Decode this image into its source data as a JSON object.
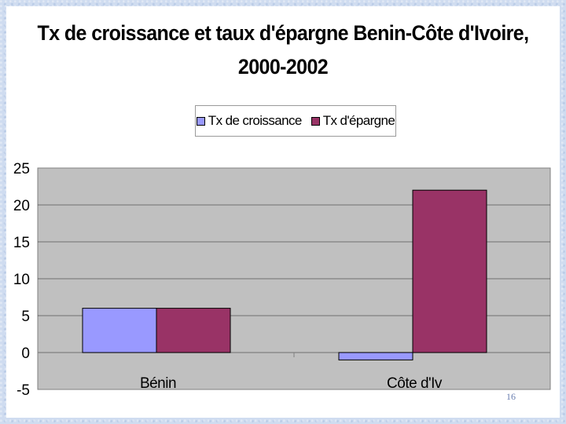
{
  "chart_data": {
    "type": "bar",
    "title": "Tx de croissance et taux d'épargne Benin-Côte d'Ivoire, 2000-2002",
    "title_lines": [
      "Tx de croissance et taux d'épargne Benin-Côte d'Ivoire,",
      "2000-2002"
    ],
    "categories": [
      "Bénin",
      "Côte d'Iv"
    ],
    "series": [
      {
        "name": "Tx de croissance",
        "values": [
          6,
          -1
        ],
        "color": "#9999ff"
      },
      {
        "name": "Tx d'épargne",
        "values": [
          6,
          22
        ],
        "color": "#993366"
      }
    ],
    "xlabel": "",
    "ylabel": "",
    "ylim": [
      -5,
      25
    ],
    "yticks": [
      "-5",
      "0",
      "5",
      "10",
      "15",
      "20",
      "25"
    ],
    "grid": true,
    "legend_position": "top",
    "plot_background": "#c0c0c0"
  },
  "slide": {
    "number": "16"
  }
}
